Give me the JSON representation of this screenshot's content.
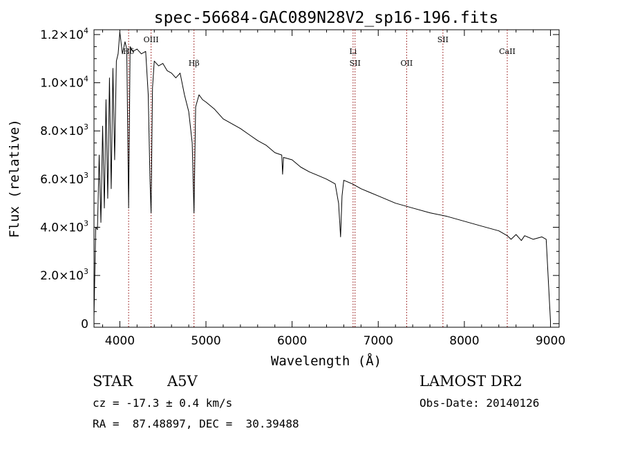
{
  "chart_data": {
    "type": "line",
    "title": "spec-56684-GAC089N28V2_sp16-196.fits",
    "xlabel": "Wavelength (Å)",
    "ylabel": "Flux (relative)",
    "xlim": [
      3700,
      9100
    ],
    "ylim": [
      -150,
      12200
    ],
    "x_ticks": [
      4000,
      5000,
      6000,
      7000,
      8000,
      9000
    ],
    "x_tick_labels": [
      "4000",
      "5000",
      "6000",
      "7000",
      "8000",
      "9000"
    ],
    "y_ticks": [
      0,
      2000,
      4000,
      6000,
      8000,
      10000,
      12000
    ],
    "y_tick_labels": [
      {
        "mant": "0",
        "exp": ""
      },
      {
        "mant": "2.0×10",
        "exp": "3"
      },
      {
        "mant": "4.0×10",
        "exp": "3"
      },
      {
        "mant": "6.0×10",
        "exp": "3"
      },
      {
        "mant": "8.0×10",
        "exp": "3"
      },
      {
        "mant": "1.0×10",
        "exp": "4"
      },
      {
        "mant": "1.2×10",
        "exp": "4"
      }
    ],
    "line_color": "#000000",
    "marker_color": "#8b0000",
    "lines": [
      {
        "x": 4102,
        "label": "Hδ",
        "label_row": 1
      },
      {
        "x": 4363,
        "label": "OIII",
        "label_row": 0
      },
      {
        "x": 4861,
        "label": "Hβ",
        "label_row": 2
      },
      {
        "x": 6708,
        "label": "Li",
        "label_row": 1
      },
      {
        "x": 6731,
        "label": "SII",
        "label_row": 2
      },
      {
        "x": 7330,
        "label": "OII",
        "label_row": 2
      },
      {
        "x": 7751,
        "label": "SII",
        "label_row": 0
      },
      {
        "x": 8498,
        "label": "CaII",
        "label_row": 1
      }
    ],
    "series": [
      {
        "x": [
          3700,
          3720,
          3740,
          3760,
          3780,
          3800,
          3820,
          3840,
          3860,
          3880,
          3900,
          3920,
          3940,
          3960,
          3980,
          4000,
          4030,
          4060,
          4080,
          4102,
          4120,
          4150,
          4200,
          4250,
          4300,
          4330,
          4350,
          4363,
          4380,
          4400,
          4450,
          4500,
          4550,
          4600,
          4650,
          4700,
          4750,
          4800,
          4840,
          4861,
          4880,
          4920,
          4960,
          5000,
          5100,
          5200,
          5300,
          5400,
          5500,
          5600,
          5700,
          5800,
          5880,
          5890,
          5900,
          6000,
          6100,
          6200,
          6300,
          6400,
          6500,
          6540,
          6563,
          6580,
          6600,
          6700,
          6800,
          6900,
          7000,
          7200,
          7400,
          7600,
          7800,
          8000,
          8200,
          8400,
          8498,
          8542,
          8600,
          8662,
          8700,
          8800,
          8900,
          8950,
          9000
        ],
        "y": [
          300,
          4000,
          3900,
          7000,
          4200,
          8200,
          4800,
          9300,
          5200,
          10200,
          5600,
          10600,
          6800,
          10900,
          11200,
          12100,
          11200,
          11700,
          11400,
          4800,
          11500,
          11300,
          11400,
          11200,
          11300,
          9500,
          6000,
          4600,
          9800,
          10900,
          10700,
          10800,
          10500,
          10400,
          10200,
          10400,
          9500,
          8800,
          7500,
          4600,
          9000,
          9500,
          9300,
          9200,
          8900,
          8500,
          8300,
          8100,
          7850,
          7600,
          7400,
          7100,
          7000,
          6200,
          6900,
          6800,
          6500,
          6300,
          6150,
          6000,
          5800,
          5000,
          3600,
          5300,
          5950,
          5800,
          5600,
          5450,
          5300,
          5000,
          4800,
          4600,
          4450,
          4250,
          4050,
          3850,
          3650,
          3500,
          3700,
          3450,
          3650,
          3500,
          3600,
          3500,
          100
        ]
      }
    ]
  },
  "info": {
    "object_type": "STAR",
    "subclass": "A5V",
    "survey": "LAMOST DR2",
    "cz": "cz = -17.3 ± 0.4 km/s",
    "obs_date": "Obs-Date: 20140126",
    "coords": "RA =  87.48897, DEC =  30.39488"
  }
}
